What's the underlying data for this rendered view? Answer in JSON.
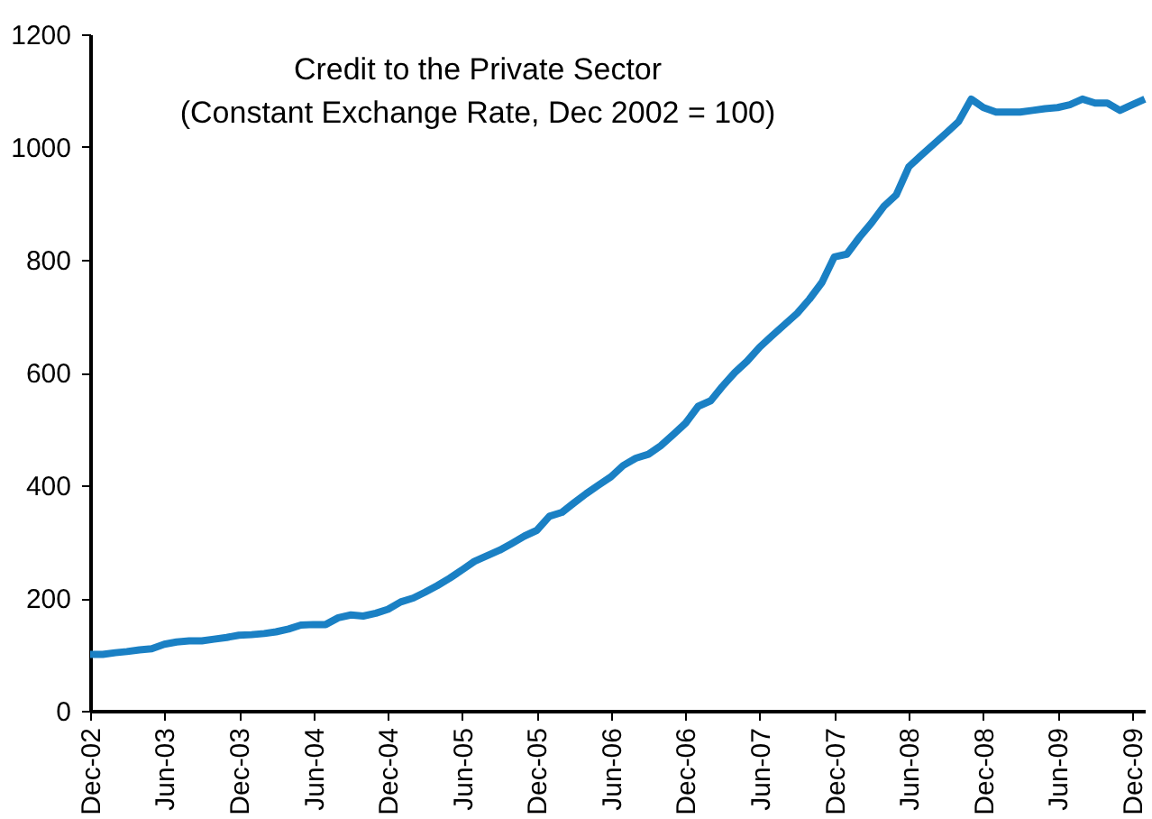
{
  "chart_data": {
    "type": "line",
    "title": "Credit to the Private Sector",
    "subtitle": "(Constant Exchange Rate, Dec 2002 = 100)",
    "x": [
      "2002-12",
      "2003-01",
      "2003-02",
      "2003-03",
      "2003-04",
      "2003-05",
      "2003-06",
      "2003-07",
      "2003-08",
      "2003-09",
      "2003-10",
      "2003-11",
      "2003-12",
      "2004-01",
      "2004-02",
      "2004-03",
      "2004-04",
      "2004-05",
      "2004-06",
      "2004-07",
      "2004-08",
      "2004-09",
      "2004-10",
      "2004-11",
      "2004-12",
      "2005-01",
      "2005-02",
      "2005-03",
      "2005-04",
      "2005-05",
      "2005-06",
      "2005-07",
      "2005-08",
      "2005-09",
      "2005-10",
      "2005-11",
      "2005-12",
      "2006-01",
      "2006-02",
      "2006-03",
      "2006-04",
      "2006-05",
      "2006-06",
      "2006-07",
      "2006-08",
      "2006-09",
      "2006-10",
      "2006-11",
      "2006-12",
      "2007-01",
      "2007-02",
      "2007-03",
      "2007-04",
      "2007-05",
      "2007-06",
      "2007-07",
      "2007-08",
      "2007-09",
      "2007-10",
      "2007-11",
      "2007-12",
      "2008-01",
      "2008-02",
      "2008-03",
      "2008-04",
      "2008-05",
      "2008-06",
      "2008-07",
      "2008-08",
      "2008-09",
      "2008-10",
      "2008-11",
      "2008-12",
      "2009-01",
      "2009-02",
      "2009-03",
      "2009-04",
      "2009-05",
      "2009-06",
      "2009-07",
      "2009-08",
      "2009-09",
      "2009-10",
      "2009-11",
      "2009-12",
      "2010-01"
    ],
    "series": [
      {
        "color": "#1a80c4",
        "values": [
          100,
          100,
          103,
          105,
          108,
          110,
          118,
          122,
          124,
          124,
          127,
          130,
          134,
          135,
          137,
          140,
          145,
          152,
          153,
          153,
          165,
          170,
          168,
          173,
          180,
          193,
          200,
          210,
          222,
          235,
          250,
          265,
          275,
          285,
          297,
          310,
          320,
          345,
          352,
          368,
          385,
          400,
          415,
          435,
          448,
          455,
          470,
          490,
          510,
          540,
          550,
          575,
          600,
          620,
          645,
          665,
          685,
          705,
          730,
          760,
          805,
          810,
          840,
          865,
          895,
          915,
          965,
          985,
          1005,
          1025,
          1045,
          1085,
          1070,
          1062,
          1062,
          1062,
          1065,
          1068,
          1070,
          1075,
          1085,
          1078,
          1078,
          1065,
          1075,
          1085
        ]
      }
    ],
    "xlim": [
      "2002-12",
      "2010-01"
    ],
    "xticks": [
      {
        "value": "2002-12",
        "label": "Dec-02"
      },
      {
        "value": "2003-06",
        "label": "Jun-03"
      },
      {
        "value": "2003-12",
        "label": "Dec-03"
      },
      {
        "value": "2004-06",
        "label": "Jun-04"
      },
      {
        "value": "2004-12",
        "label": "Dec-04"
      },
      {
        "value": "2005-06",
        "label": "Jun-05"
      },
      {
        "value": "2005-12",
        "label": "Dec-05"
      },
      {
        "value": "2006-06",
        "label": "Jun-06"
      },
      {
        "value": "2006-12",
        "label": "Dec-06"
      },
      {
        "value": "2007-06",
        "label": "Jun-07"
      },
      {
        "value": "2007-12",
        "label": "Dec-07"
      },
      {
        "value": "2008-06",
        "label": "Jun-08"
      },
      {
        "value": "2008-12",
        "label": "Dec-08"
      },
      {
        "value": "2009-06",
        "label": "Jun-09"
      },
      {
        "value": "2009-12",
        "label": "Dec-09"
      }
    ],
    "ylim": [
      0,
      1200
    ],
    "yticks": [
      0,
      200,
      400,
      600,
      800,
      1000,
      1200
    ],
    "grid": false,
    "line_style": "solid",
    "marker": "none"
  }
}
